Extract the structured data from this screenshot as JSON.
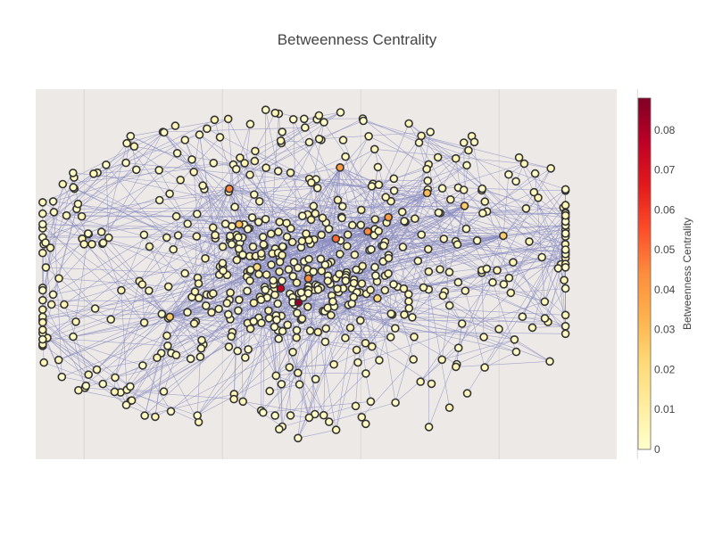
{
  "chart_data": {
    "type": "network-scatter",
    "title": "Betweenness Centrality",
    "colorbar": {
      "title": "Betweenness Centrality",
      "ticks": [
        "0",
        "0.01",
        "0.02",
        "0.03",
        "0.04",
        "0.05",
        "0.06",
        "0.07",
        "0.08"
      ],
      "range": [
        0,
        0.088
      ],
      "colorscale": [
        "#ffffcc",
        "#ffeda0",
        "#fed976",
        "#feb24c",
        "#fd8d3c",
        "#fc4e2a",
        "#e31a1c",
        "#bd0026",
        "#800026"
      ]
    },
    "node_count": 600,
    "edge_count": 1450,
    "highlight_nodes": [
      {
        "x": 0.55,
        "y": -0.15,
        "value": 0.085
      },
      {
        "x": 0.42,
        "y": -0.05,
        "value": 0.075
      },
      {
        "x": 0.62,
        "y": 0.02,
        "value": 0.045
      },
      {
        "x": 0.82,
        "y": 0.3,
        "value": 0.05
      },
      {
        "x": 1.05,
        "y": 0.35,
        "value": 0.045
      },
      {
        "x": 1.2,
        "y": 0.45,
        "value": 0.04
      },
      {
        "x": 0.85,
        "y": 0.8,
        "value": 0.04
      },
      {
        "x": 0.05,
        "y": 0.65,
        "value": 0.045
      },
      {
        "x": 0.12,
        "y": 0.4,
        "value": 0.03
      },
      {
        "x": 1.48,
        "y": 0.62,
        "value": 0.03
      },
      {
        "x": 2.03,
        "y": 0.32,
        "value": 0.025
      },
      {
        "x": -0.38,
        "y": -0.25,
        "value": 0.025
      },
      {
        "x": 1.75,
        "y": 0.53,
        "value": 0.025
      },
      {
        "x": 1.12,
        "y": -0.12,
        "value": 0.02
      },
      {
        "x": 0.25,
        "y": 0.1,
        "value": 0.02
      }
    ],
    "xrange": [
      -1.35,
      2.85
    ],
    "yrange": [
      -1.25,
      1.35
    ],
    "xgrid": [
      -1.0,
      0.0,
      1.0,
      2.0,
      3.0
    ],
    "grid": true,
    "plot_bgcolor": "#ede9e6",
    "node_outline": "#333333",
    "edge_color": "#8a8cc2"
  }
}
